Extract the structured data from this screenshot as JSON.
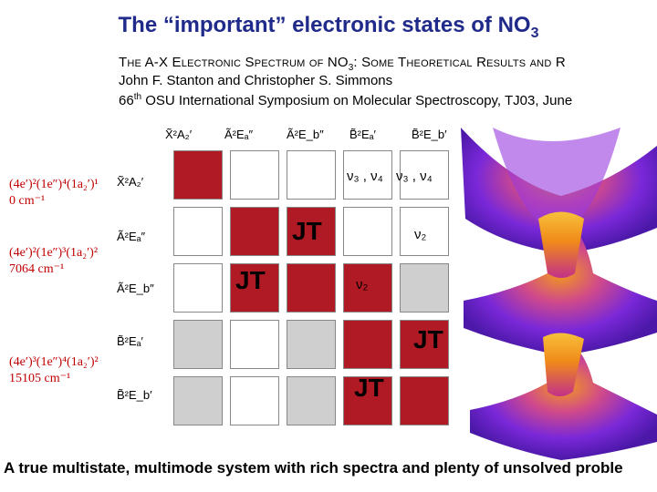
{
  "title": {
    "text": "The “important” electronic states of NO",
    "subscript": "3"
  },
  "reference": {
    "line1": {
      "a": "The A-X Electronic Spectrum of NO",
      "sub": "3",
      "b": ": Some Theoretical Results and R"
    },
    "line2": "John F. Stanton and Christopher S. Simmons",
    "line3": {
      "a": "66",
      "sup": "th",
      "b": " OSU International Symposium on Molecular Spectroscopy, TJ03, June"
    }
  },
  "states": [
    {
      "label": "X̃²A₂′"
    },
    {
      "label": "Ã²Eₐ″"
    },
    {
      "label": "Ã²E_b″"
    },
    {
      "label": "B̃²Eₐ′"
    },
    {
      "label": "B̃²E_b′"
    }
  ],
  "column_headers": [
    "X̃²A₂′",
    "Ã²Eₐ″",
    "Ã²E_b″",
    "B̃²Eₐ′",
    "B̃²E_b′"
  ],
  "row_headers": [
    "X̃²A₂′",
    "Ã²Eₐ″",
    "Ã²E_b″",
    "B̃²Eₐ′",
    "B̃²E_b′"
  ],
  "configurations": [
    {
      "text": "(4e′)²(1e″)⁴(1a₂′)¹",
      "energy": "0 cm⁻¹"
    },
    {
      "text": "(4e′)²(1e″)³(1a₂′)²",
      "energy": "7064 cm⁻¹"
    },
    {
      "text": "(4e′)³(1e″)⁴(1a₂′)²",
      "energy": "15105 cm⁻¹"
    }
  ],
  "matrix": {
    "fills": [
      [
        "red",
        "white",
        "white",
        "white",
        "white"
      ],
      [
        "white",
        "red",
        "red",
        "white",
        "white"
      ],
      [
        "white",
        "red",
        "red",
        "red",
        "grey"
      ],
      [
        "grey",
        "white",
        "grey",
        "red",
        "red"
      ],
      [
        "grey",
        "white",
        "grey",
        "red",
        "red"
      ]
    ],
    "labels": {
      "nu34": "ν₃ , ν₄",
      "nu2": "ν₂",
      "jt": "JT"
    }
  },
  "footer": "A true multistate, multimode system with rich spectra and plenty of unsolved proble",
  "colors": {
    "title": "#1f2a8a",
    "red_cell": "#b01a24",
    "grey_cell": "#cfcfcf",
    "config": "#c00000",
    "surface_purple": "#7a28d8",
    "surface_orange": "#f39a1a"
  },
  "icons": [
    "potential-surface-1",
    "potential-surface-2",
    "potential-surface-3"
  ]
}
